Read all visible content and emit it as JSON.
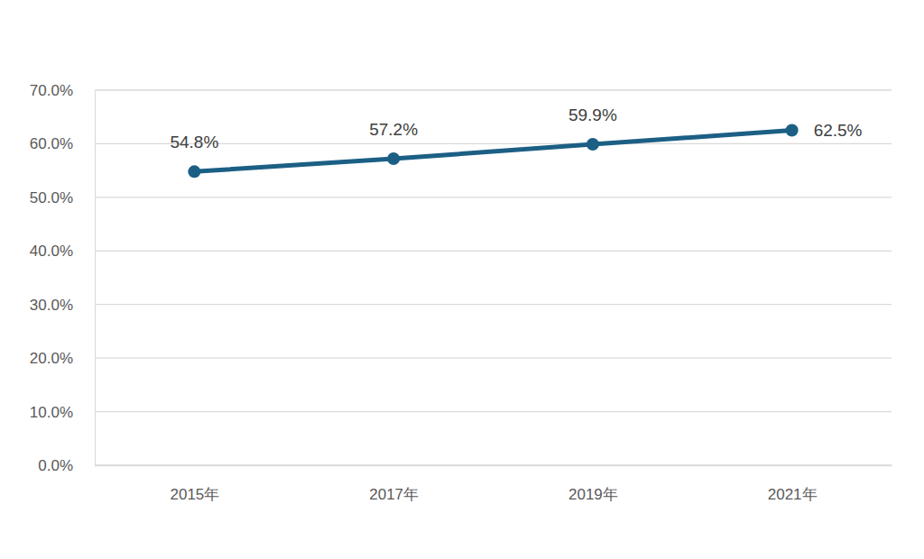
{
  "chart_data": {
    "type": "line",
    "categories": [
      "2015年",
      "2017年",
      "2019年",
      "2021年"
    ],
    "values": [
      54.8,
      57.2,
      59.9,
      62.5
    ],
    "value_labels": [
      "54.8%",
      "57.2%",
      "59.9%",
      "62.5%"
    ],
    "color": "#1c5f85",
    "marker": "circle",
    "ylim": [
      0,
      70
    ],
    "yticks": [
      {
        "value": 0,
        "label": "0.0%"
      },
      {
        "value": 10,
        "label": "10.0%"
      },
      {
        "value": 20,
        "label": "20.0%"
      },
      {
        "value": 30,
        "label": "30.0%"
      },
      {
        "value": 40,
        "label": "40.0%"
      },
      {
        "value": 50,
        "label": "50.0%"
      },
      {
        "value": 60,
        "label": "60.0%"
      },
      {
        "value": 70,
        "label": "70.0%"
      }
    ],
    "grid": true,
    "data_labels": true
  }
}
